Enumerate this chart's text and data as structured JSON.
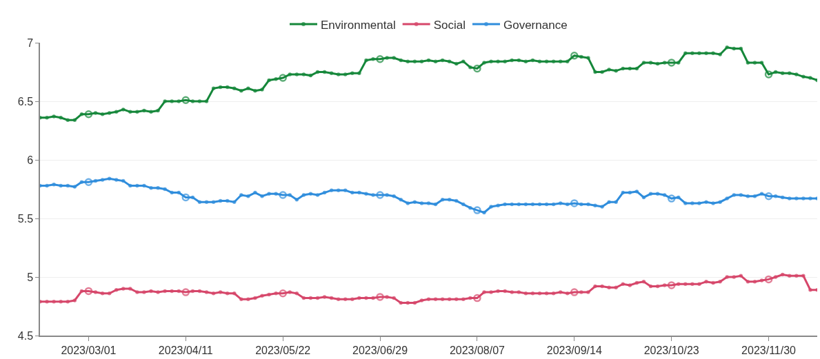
{
  "chart_data": {
    "type": "line",
    "categories": [
      null,
      null,
      null,
      null,
      null,
      null,
      null,
      "2023/03/01",
      null,
      null,
      null,
      null,
      null,
      null,
      null,
      null,
      null,
      null,
      null,
      null,
      null,
      "2023/04/11",
      null,
      null,
      null,
      null,
      null,
      null,
      null,
      null,
      null,
      null,
      null,
      null,
      null,
      "2023/05/22",
      null,
      null,
      null,
      null,
      null,
      null,
      null,
      null,
      null,
      null,
      null,
      null,
      null,
      "2023/06/29",
      null,
      null,
      null,
      null,
      null,
      null,
      null,
      null,
      null,
      null,
      null,
      null,
      null,
      "2023/08/07",
      null,
      null,
      null,
      null,
      null,
      null,
      null,
      null,
      null,
      null,
      null,
      null,
      null,
      "2023/09/14",
      null,
      null,
      null,
      null,
      null,
      null,
      null,
      null,
      null,
      null,
      null,
      null,
      null,
      "2023/10/23",
      null,
      null,
      null,
      null,
      null,
      null,
      null,
      null,
      null,
      null,
      null,
      null,
      null,
      "2023/11/30",
      null,
      null,
      null,
      null,
      null,
      null,
      null
    ],
    "series": [
      {
        "name": "Environmental",
        "color": "#15873a",
        "values": [
          6.36,
          6.36,
          6.37,
          6.36,
          6.34,
          6.34,
          6.39,
          6.39,
          6.4,
          6.39,
          6.4,
          6.41,
          6.43,
          6.41,
          6.41,
          6.42,
          6.41,
          6.42,
          6.5,
          6.5,
          6.5,
          6.51,
          6.5,
          6.5,
          6.5,
          6.61,
          6.62,
          6.62,
          6.61,
          6.59,
          6.61,
          6.59,
          6.6,
          6.68,
          6.69,
          6.7,
          6.73,
          6.73,
          6.73,
          6.72,
          6.75,
          6.75,
          6.74,
          6.73,
          6.73,
          6.74,
          6.74,
          6.85,
          6.86,
          6.86,
          6.87,
          6.87,
          6.85,
          6.84,
          6.84,
          6.84,
          6.85,
          6.84,
          6.85,
          6.84,
          6.82,
          6.84,
          6.79,
          6.78,
          6.83,
          6.84,
          6.84,
          6.84,
          6.85,
          6.85,
          6.84,
          6.85,
          6.84,
          6.84,
          6.84,
          6.84,
          6.84,
          6.89,
          6.88,
          6.87,
          6.75,
          6.75,
          6.77,
          6.76,
          6.78,
          6.78,
          6.78,
          6.83,
          6.83,
          6.82,
          6.83,
          6.83,
          6.83,
          6.91,
          6.91,
          6.91,
          6.91,
          6.91,
          6.9,
          6.96,
          6.95,
          6.95,
          6.83,
          6.83,
          6.83,
          6.73,
          6.75,
          6.74,
          6.74,
          6.73,
          6.71,
          6.7,
          6.68
        ]
      },
      {
        "name": "Social",
        "color": "#d6466a",
        "values": [
          4.79,
          4.79,
          4.79,
          4.79,
          4.79,
          4.8,
          4.88,
          4.88,
          4.87,
          4.86,
          4.86,
          4.89,
          4.9,
          4.9,
          4.87,
          4.87,
          4.88,
          4.87,
          4.88,
          4.88,
          4.88,
          4.87,
          4.88,
          4.88,
          4.87,
          4.86,
          4.87,
          4.86,
          4.86,
          4.81,
          4.81,
          4.82,
          4.84,
          4.85,
          4.86,
          4.86,
          4.87,
          4.86,
          4.82,
          4.82,
          4.82,
          4.83,
          4.82,
          4.81,
          4.81,
          4.81,
          4.82,
          4.82,
          4.82,
          4.83,
          4.83,
          4.82,
          4.78,
          4.78,
          4.78,
          4.8,
          4.81,
          4.81,
          4.81,
          4.81,
          4.81,
          4.81,
          4.82,
          4.82,
          4.87,
          4.87,
          4.88,
          4.88,
          4.87,
          4.87,
          4.86,
          4.86,
          4.86,
          4.86,
          4.86,
          4.87,
          4.86,
          4.87,
          4.87,
          4.87,
          4.92,
          4.92,
          4.91,
          4.91,
          4.94,
          4.93,
          4.95,
          4.96,
          4.92,
          4.92,
          4.93,
          4.93,
          4.94,
          4.94,
          4.94,
          4.94,
          4.96,
          4.95,
          4.96,
          5.0,
          5.0,
          5.01,
          4.96,
          4.96,
          4.97,
          4.98,
          5.0,
          5.02,
          5.01,
          5.01,
          5.01,
          4.89,
          4.89
        ]
      },
      {
        "name": "Governance",
        "color": "#2f8ddc",
        "values": [
          5.78,
          5.78,
          5.79,
          5.78,
          5.78,
          5.77,
          5.81,
          5.81,
          5.82,
          5.83,
          5.84,
          5.83,
          5.82,
          5.78,
          5.78,
          5.78,
          5.76,
          5.76,
          5.75,
          5.72,
          5.72,
          5.68,
          5.68,
          5.64,
          5.64,
          5.64,
          5.65,
          5.65,
          5.64,
          5.7,
          5.69,
          5.72,
          5.69,
          5.71,
          5.71,
          5.7,
          5.7,
          5.66,
          5.7,
          5.71,
          5.7,
          5.72,
          5.74,
          5.74,
          5.74,
          5.72,
          5.72,
          5.71,
          5.7,
          5.7,
          5.7,
          5.69,
          5.66,
          5.63,
          5.64,
          5.63,
          5.63,
          5.62,
          5.66,
          5.66,
          5.65,
          5.62,
          5.59,
          5.57,
          5.55,
          5.6,
          5.61,
          5.62,
          5.62,
          5.62,
          5.62,
          5.62,
          5.62,
          5.62,
          5.62,
          5.63,
          5.62,
          5.63,
          5.62,
          5.62,
          5.61,
          5.6,
          5.64,
          5.64,
          5.72,
          5.72,
          5.73,
          5.68,
          5.71,
          5.71,
          5.7,
          5.67,
          5.68,
          5.63,
          5.63,
          5.63,
          5.64,
          5.63,
          5.64,
          5.67,
          5.7,
          5.7,
          5.69,
          5.69,
          5.71,
          5.69,
          5.69,
          5.68,
          5.67,
          5.67,
          5.67,
          5.67,
          5.67
        ]
      }
    ],
    "ylim": [
      4.5,
      7
    ],
    "yticks": [
      4.5,
      5,
      5.5,
      6,
      6.5,
      7
    ],
    "grid": "y",
    "legend": "top",
    "marker": "circle",
    "line_style": "solid"
  }
}
